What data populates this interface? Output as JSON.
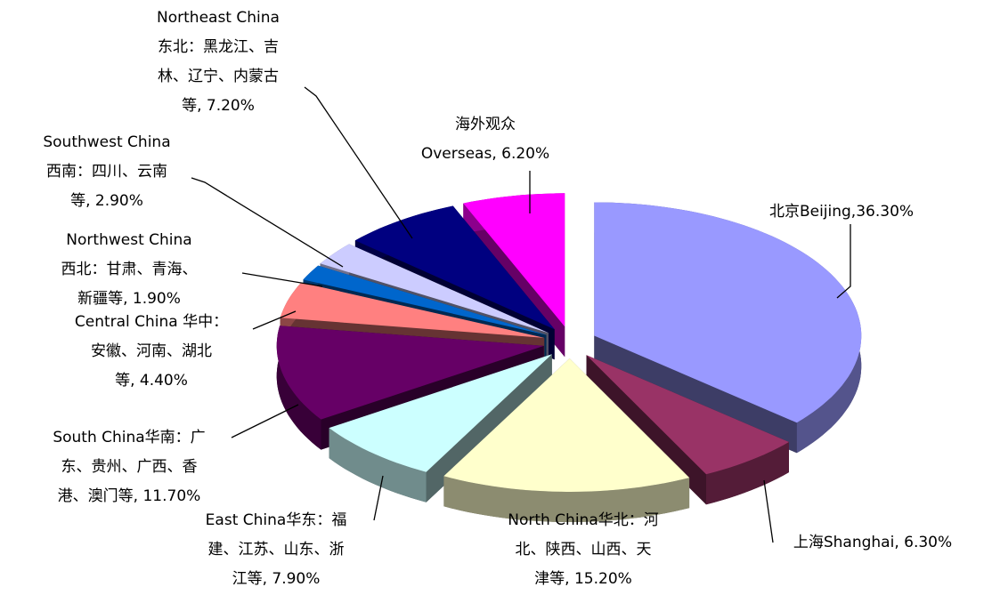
{
  "chart_data": {
    "type": "pie",
    "values": [
      36.3,
      6.3,
      15.2,
      7.9,
      11.7,
      4.4,
      1.9,
      2.9,
      7.2,
      6.2
    ],
    "value_labels": [
      [
        "北京Beijing,36.30%"
      ],
      [
        "上海Shanghai, 6.30%"
      ],
      [
        "North China华北：河",
        "北、陕西、山西、天",
        "津等, 15.20%"
      ],
      [
        "East China华东：福",
        "建、江苏、山东、浙",
        "江等, 7.90%"
      ],
      [
        "South China华南：广",
        "东、贵州、广西、香",
        "港、澳门等, 11.70%"
      ],
      [
        "Central China 华中：",
        "安徽、河南、湖北",
        "等, 4.40%"
      ],
      [
        "Northwest China",
        "西北：甘肃、青海、",
        "新疆等, 1.90%"
      ],
      [
        "Southwest China",
        "西南：四川、云南",
        "等, 2.90%"
      ],
      [
        "Northeast China",
        "东北：黑龙江、吉",
        "林、辽宁、内蒙古",
        "等, 7.20%"
      ],
      [
        "海外观众",
        "Overseas, 6.20%"
      ]
    ],
    "colors": [
      "#9999ff",
      "#993366",
      "#ffffcc",
      "#ccffff",
      "#660066",
      "#ff8080",
      "#0066cc",
      "#ccccff",
      "#000080",
      "#ff00ff"
    ]
  }
}
